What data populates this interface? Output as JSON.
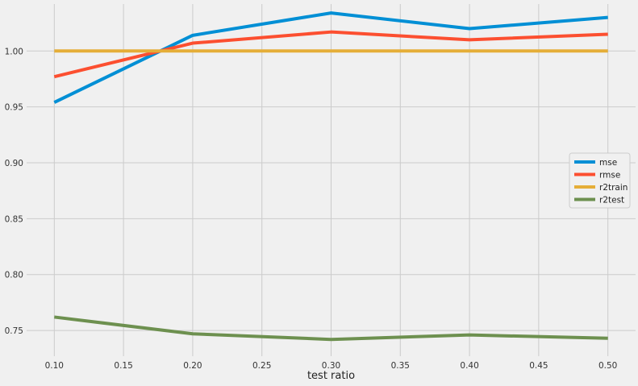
{
  "chart_data": {
    "type": "line",
    "title": "",
    "xlabel": "test ratio",
    "ylabel": "",
    "x": [
      0.1,
      0.2,
      0.3,
      0.4,
      0.5
    ],
    "xlim": [
      0.08,
      0.52
    ],
    "ylim": [
      0.727,
      1.042
    ],
    "xticks": [
      "0.10",
      "0.15",
      "0.20",
      "0.25",
      "0.30",
      "0.35",
      "0.40",
      "0.45",
      "0.50"
    ],
    "yticks": [
      "0.75",
      "0.80",
      "0.85",
      "0.90",
      "0.95",
      "1.00"
    ],
    "grid": true,
    "legend_position": "right",
    "series": [
      {
        "name": "mse",
        "color": "#008fd5",
        "values": [
          0.954,
          1.014,
          1.034,
          1.02,
          1.03
        ]
      },
      {
        "name": "rmse",
        "color": "#fc4f30",
        "values": [
          0.977,
          1.007,
          1.017,
          1.01,
          1.015
        ]
      },
      {
        "name": "r2train",
        "color": "#e5ae38",
        "values": [
          1.0,
          1.0,
          1.0,
          1.0,
          1.0
        ]
      },
      {
        "name": "r2test",
        "color": "#6d904f",
        "values": [
          0.762,
          0.747,
          0.742,
          0.746,
          0.743
        ]
      }
    ]
  }
}
